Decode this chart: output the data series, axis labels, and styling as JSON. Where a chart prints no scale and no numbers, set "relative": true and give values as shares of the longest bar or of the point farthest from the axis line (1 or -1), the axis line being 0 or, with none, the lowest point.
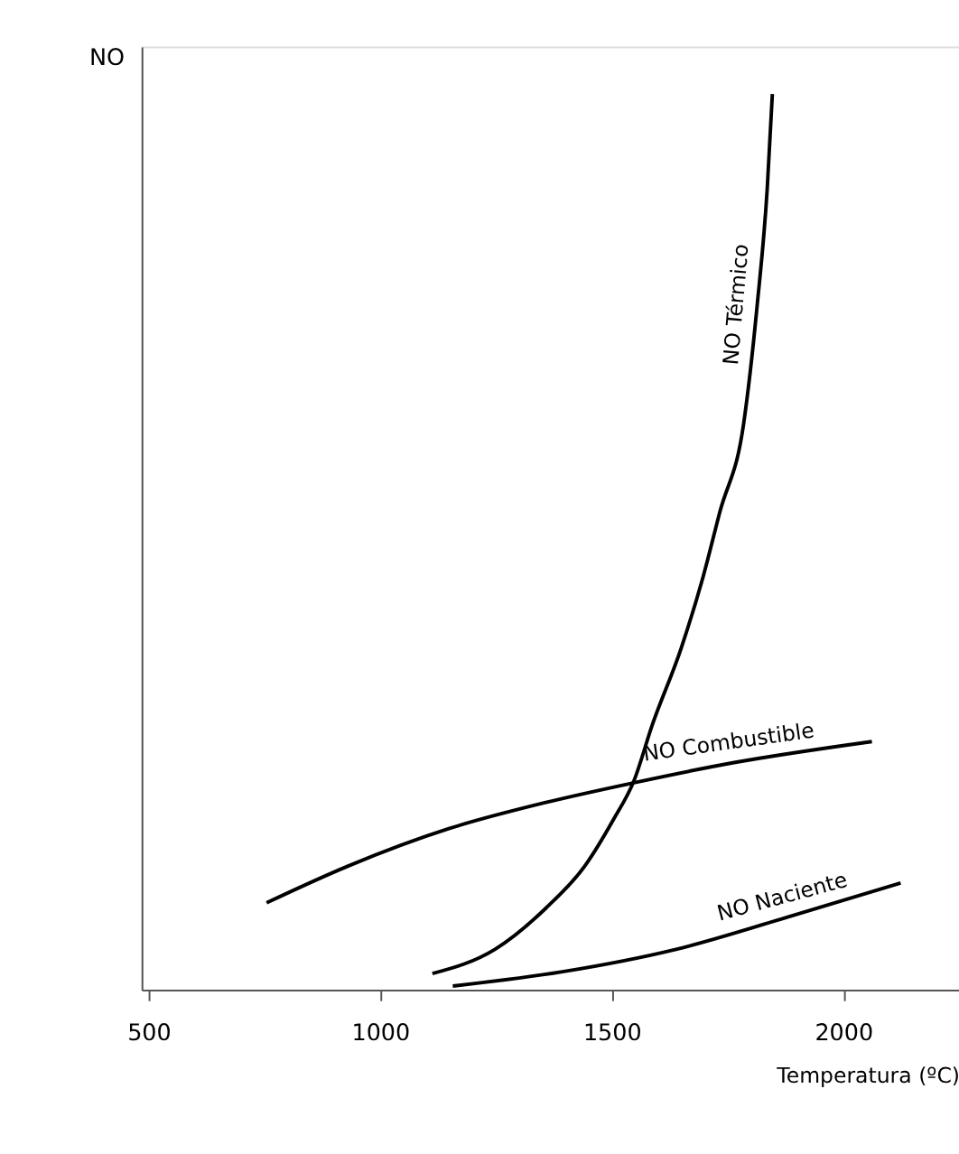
{
  "chart_data": {
    "type": "line",
    "relative": true,
    "ylabel": "NO",
    "xlabel": "Temperatura (ºC)",
    "xlim": [
      485,
      2250
    ],
    "xticks": [
      500,
      1000,
      1500,
      2000
    ],
    "grid": false,
    "marker": "none",
    "line_style": "solid",
    "series": [
      {
        "name": "NO Térmico",
        "color": "#000000",
        "x": [
          1113,
          1248,
          1358,
          1442,
          1504,
          1548,
          1588,
          1650,
          1697,
          1734,
          1785,
          1814,
          1836,
          1847
        ],
        "values": [
          0.018,
          0.045,
          0.091,
          0.138,
          0.19,
          0.233,
          0.296,
          0.381,
          0.46,
          0.534,
          0.632,
          0.763,
          0.895,
          1
        ]
      },
      {
        "name": "NO Combustible",
        "color": "#000000",
        "x": [
          755,
          931,
          1150,
          1358,
          1548,
          1759,
          2062
        ],
        "values": [
          0.097,
          0.138,
          0.18,
          0.209,
          0.231,
          0.253,
          0.277
        ]
      },
      {
        "name": "NO Naciente",
        "color": "#000000",
        "x": [
          1157,
          1394,
          1639,
          1880,
          2124
        ],
        "values": [
          0.004,
          0.02,
          0.045,
          0.081,
          0.119
        ]
      }
    ]
  }
}
